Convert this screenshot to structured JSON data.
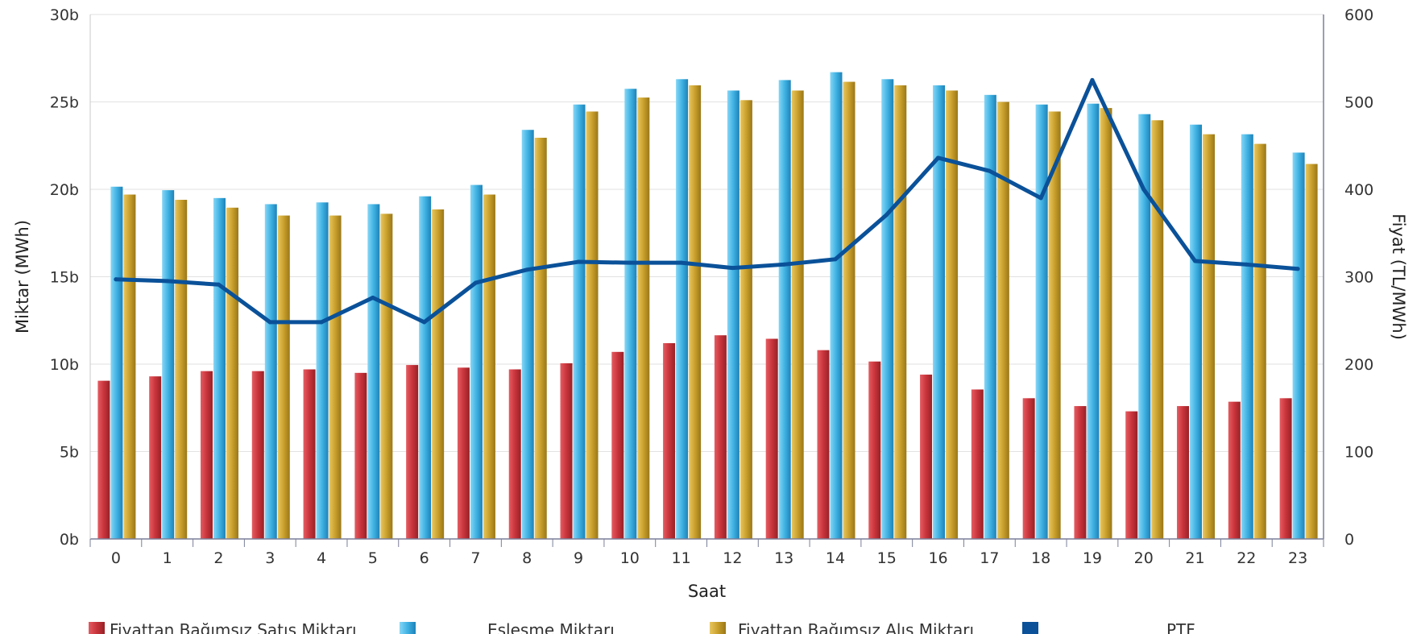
{
  "chart_data": {
    "type": "bar",
    "title": "",
    "xlabel": "Saat",
    "ylabel": "Miktar (MWh)",
    "y2label": "Fiyat (TL/MWh)",
    "categories": [
      "0",
      "1",
      "2",
      "3",
      "4",
      "5",
      "6",
      "7",
      "8",
      "9",
      "10",
      "11",
      "12",
      "13",
      "14",
      "15",
      "16",
      "17",
      "18",
      "19",
      "20",
      "21",
      "22",
      "23"
    ],
    "ylim": [
      0,
      30000
    ],
    "y2lim": [
      0,
      600
    ],
    "yticks": [
      {
        "value": 0,
        "label": "0b"
      },
      {
        "value": 5000,
        "label": "5b"
      },
      {
        "value": 10000,
        "label": "10b"
      },
      {
        "value": 15000,
        "label": "15b"
      },
      {
        "value": 20000,
        "label": "20b"
      },
      {
        "value": 25000,
        "label": "25b"
      },
      {
        "value": 30000,
        "label": "30b"
      }
    ],
    "y2ticks": [
      {
        "value": 0,
        "label": "0"
      },
      {
        "value": 100,
        "label": "100"
      },
      {
        "value": 200,
        "label": "200"
      },
      {
        "value": 300,
        "label": "300"
      },
      {
        "value": 400,
        "label": "400"
      },
      {
        "value": 500,
        "label": "500"
      },
      {
        "value": 600,
        "label": "600"
      }
    ],
    "grid": true,
    "legend": "bottom",
    "series": [
      {
        "name": "Fiyattan Bağımsız Satış Miktarı",
        "type": "bar",
        "axis": "left",
        "color": "#c9343b",
        "values": [
          9050,
          9300,
          9600,
          9600,
          9700,
          9500,
          9950,
          9800,
          9700,
          10050,
          10700,
          11200,
          11650,
          11450,
          10800,
          10150,
          9400,
          8550,
          8050,
          7600,
          7300,
          7600,
          7850,
          8050
        ]
      },
      {
        "name": "Eşleşme Miktarı",
        "type": "bar",
        "axis": "left",
        "color": "#3fb2e3",
        "values": [
          20150,
          19950,
          19500,
          19150,
          19250,
          19150,
          19600,
          20250,
          23400,
          24850,
          25750,
          26300,
          25650,
          26250,
          26700,
          26300,
          25950,
          25400,
          24850,
          24900,
          24300,
          23700,
          23150,
          22100
        ]
      },
      {
        "name": "Fiyattan Bağımsız Alış Miktarı",
        "type": "bar",
        "axis": "left",
        "color": "#c9a02c",
        "values": [
          19700,
          19400,
          18950,
          18500,
          18500,
          18600,
          18850,
          19700,
          22950,
          24450,
          25250,
          25950,
          25100,
          25650,
          26150,
          25950,
          25650,
          25000,
          24450,
          24650,
          23950,
          23150,
          22600,
          21450
        ]
      },
      {
        "name": "PTF",
        "type": "line",
        "axis": "right",
        "color": "#0a5199",
        "values": [
          297,
          295,
          291,
          248,
          248,
          276,
          248,
          293,
          308,
          317,
          316,
          316,
          310,
          314,
          320,
          371,
          436,
          421,
          390,
          525,
          400,
          318,
          314,
          309
        ]
      }
    ]
  }
}
